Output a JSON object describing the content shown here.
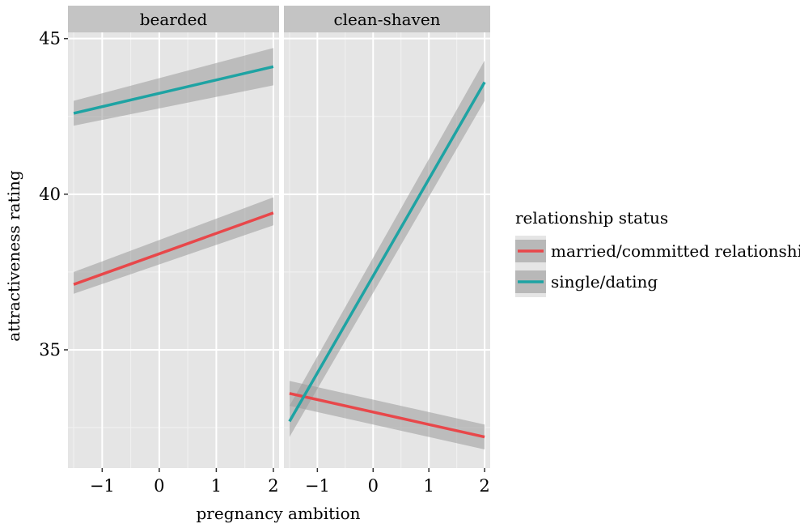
{
  "chart_data": {
    "type": "line",
    "facet_variable": "",
    "xlabel": "pregnancy ambition",
    "ylabel": "attractiveness rating",
    "xlim": [
      -1.6,
      2.1
    ],
    "ylim": [
      31.2,
      45.2
    ],
    "x_ticks": [
      -1,
      0,
      1,
      2
    ],
    "x_tick_labels": [
      "−1",
      "0",
      "1",
      "2"
    ],
    "y_ticks": [
      35,
      40,
      45
    ],
    "y_tick_labels": [
      "35",
      "40",
      "45"
    ],
    "grid": true,
    "legend": {
      "title": "relationship status",
      "placement": "right",
      "entries": [
        "married/committed relationship",
        "single/dating"
      ]
    },
    "colors": {
      "married/committed relationship": "#e8474a",
      "single/dating": "#1ea3a3",
      "panel_background": "#e5e5e5",
      "strip_background": "#c4c4c4",
      "ribbon": "#9a9a9a"
    },
    "panels": [
      {
        "strip": "bearded",
        "series": [
          {
            "name": "married/committed relationship",
            "x": [
              -1.5,
              2
            ],
            "y": [
              37.1,
              39.4
            ],
            "ci_lower": [
              36.8,
              39.0
            ],
            "ci_upper": [
              37.5,
              39.9
            ]
          },
          {
            "name": "single/dating",
            "x": [
              -1.5,
              2
            ],
            "y": [
              42.6,
              44.1
            ],
            "ci_lower": [
              42.2,
              43.5
            ],
            "ci_upper": [
              43.0,
              44.7
            ]
          }
        ]
      },
      {
        "strip": "clean-shaven",
        "series": [
          {
            "name": "married/committed relationship",
            "x": [
              -1.5,
              2
            ],
            "y": [
              33.6,
              32.2
            ],
            "ci_lower": [
              33.2,
              31.8
            ],
            "ci_upper": [
              34.0,
              32.6
            ]
          },
          {
            "name": "single/dating",
            "x": [
              -1.5,
              2
            ],
            "y": [
              32.7,
              43.6
            ],
            "ci_lower": [
              32.2,
              43.0
            ],
            "ci_upper": [
              33.2,
              44.3
            ]
          }
        ]
      }
    ]
  }
}
